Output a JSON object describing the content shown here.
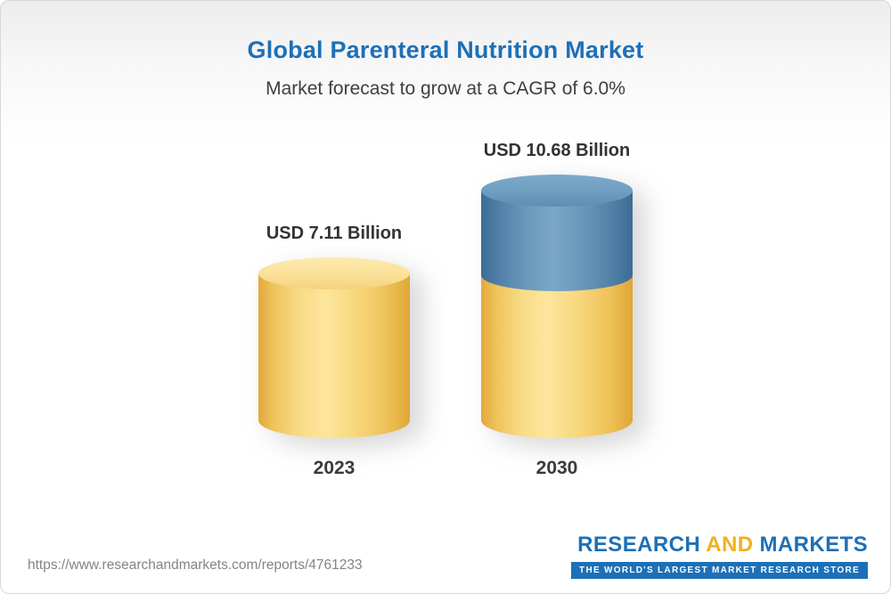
{
  "header": {
    "title": "Global Parenteral Nutrition Market",
    "subtitle": "Market forecast to grow at a CAGR of 6.0%"
  },
  "chart_data": {
    "type": "bar",
    "style": "3d-cylinder",
    "title": "Global Parenteral Nutrition Market",
    "subtitle": "Market forecast to grow at a CAGR of 6.0%",
    "cagr_pct": 6.0,
    "unit": "USD Billion",
    "categories": [
      "2023",
      "2030"
    ],
    "values": [
      7.11,
      10.68
    ],
    "value_labels": [
      "USD 7.11 Billion",
      "USD 10.68 Billion"
    ],
    "stacked_segments_2030": [
      {
        "name": "2023 baseline",
        "value": 7.11,
        "color": "#f6cf6b"
      },
      {
        "name": "forecast growth to 2030",
        "value": 3.57,
        "color": "#4e7ea8"
      }
    ],
    "ylim": [
      0,
      12
    ],
    "grid": false,
    "legend": "none",
    "colors": {
      "bar_yellow": "#f6cf6b",
      "bar_blue": "#4e7ea8",
      "title_blue": "#1d70b7"
    }
  },
  "footer": {
    "source_url": "https://www.researchandmarkets.com/reports/4761233",
    "logo": {
      "word_research": "RESEARCH",
      "word_and": "AND",
      "word_markets": "MARKETS",
      "tagline": "THE WORLD'S LARGEST MARKET RESEARCH STORE"
    }
  }
}
